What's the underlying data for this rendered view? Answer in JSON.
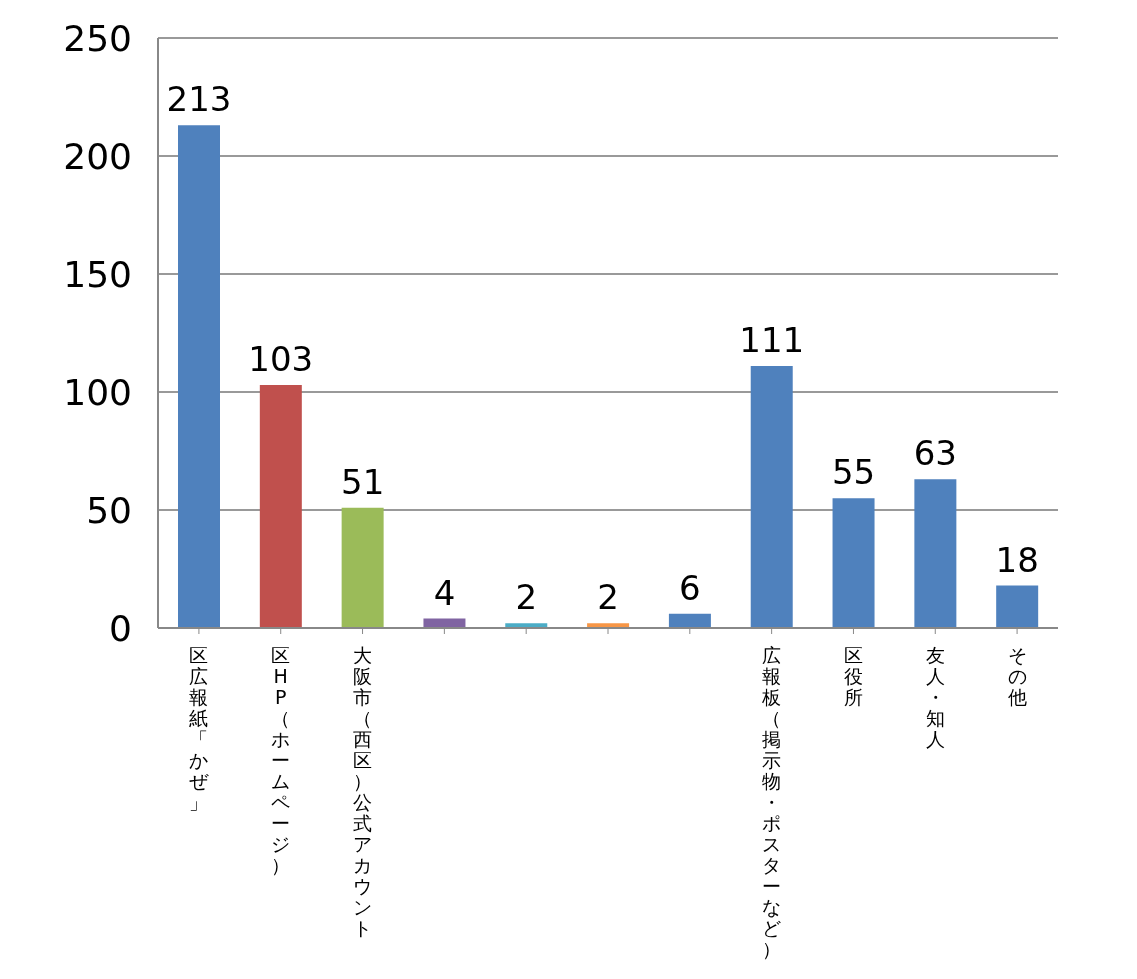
{
  "chart_data": {
    "type": "bar",
    "categories": [
      "区広報紙「かぜ」",
      "区HP（ホームページ）",
      "大阪市（西区）公式アカウント",
      null,
      null,
      null,
      null,
      "広報板（掲示物・ポスターなど）",
      "区役所",
      "友人・知人",
      "その他"
    ],
    "values": [
      213,
      103,
      51,
      4,
      2,
      2,
      6,
      111,
      55,
      63,
      18
    ],
    "colors": [
      "#4f81bd",
      "#c0504d",
      "#9bbb59",
      "#8064a2",
      "#4bacc6",
      "#f79646",
      "#4f81bd",
      "#4f81bd",
      "#4f81bd",
      "#4f81bd",
      "#4f81bd"
    ],
    "ylim": [
      0,
      250
    ],
    "yticks": [
      0,
      50,
      100,
      150,
      200,
      250
    ],
    "grid": "y",
    "data_labels": true
  }
}
